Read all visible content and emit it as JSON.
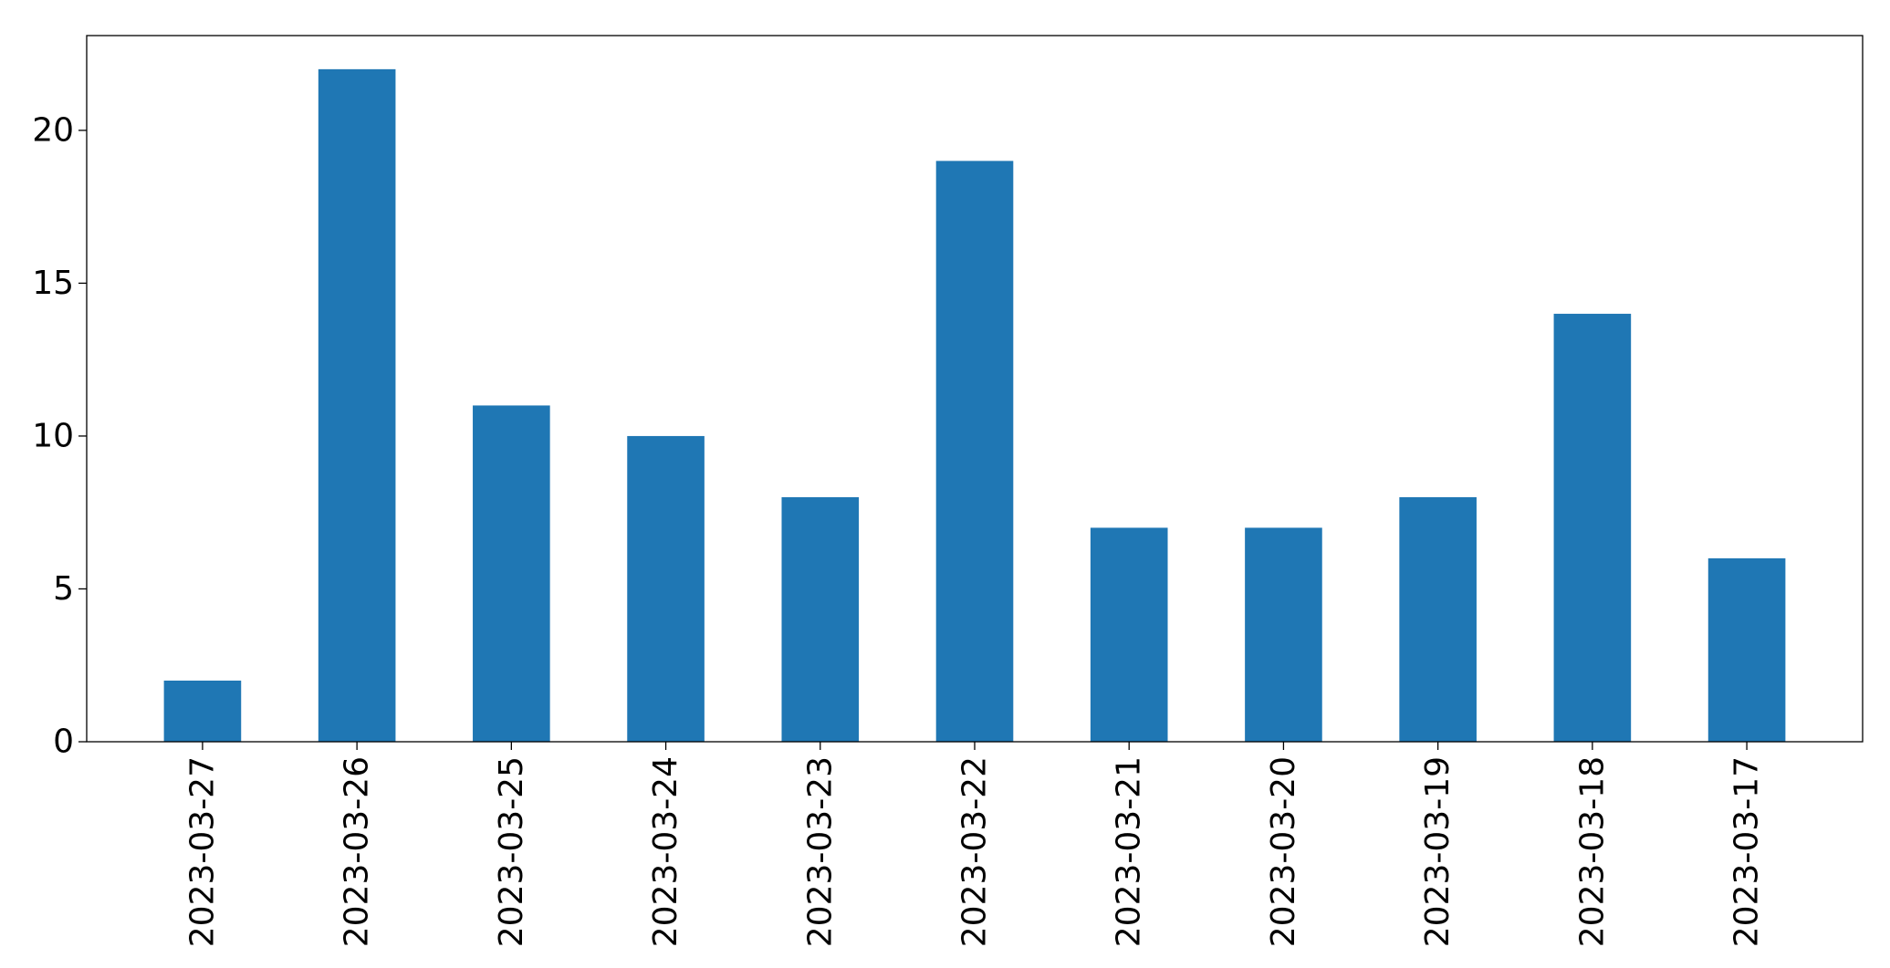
{
  "chart_data": {
    "type": "bar",
    "categories": [
      "2023-03-27",
      "2023-03-26",
      "2023-03-25",
      "2023-03-24",
      "2023-03-23",
      "2023-03-22",
      "2023-03-21",
      "2023-03-20",
      "2023-03-19",
      "2023-03-18",
      "2023-03-17"
    ],
    "values": [
      2,
      22,
      11,
      10,
      8,
      19,
      7,
      7,
      8,
      14,
      6
    ],
    "title": "",
    "xlabel": "",
    "ylabel": "",
    "ylim": [
      0,
      23.1
    ],
    "yticks": [
      0,
      5,
      10,
      15,
      20
    ],
    "grid": false,
    "legend": "none",
    "bar_color": "#1f77b4"
  }
}
